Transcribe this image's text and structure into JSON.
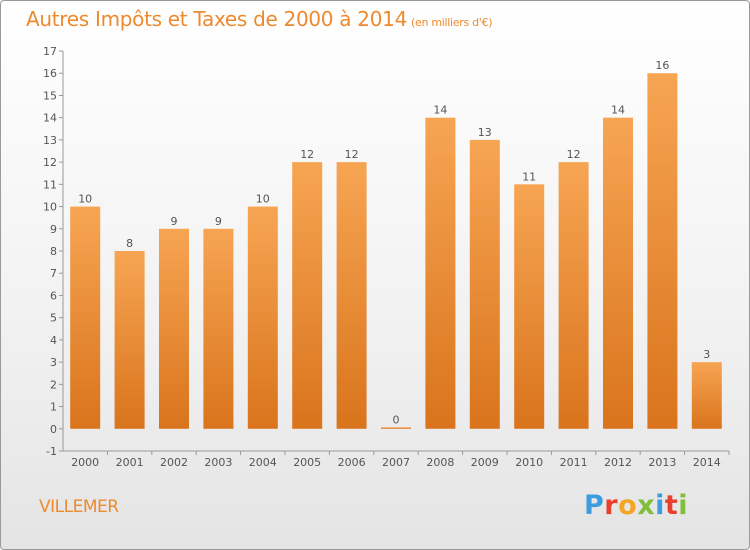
{
  "header": {
    "title": "Autres Impôts et Taxes de 2000 à 2014",
    "unit": "(en milliers d'€)"
  },
  "commune": "VILLEMER",
  "logo": {
    "letters": [
      "P",
      "r",
      "o",
      "x",
      "i",
      "t",
      "i"
    ],
    "colors": [
      "#3b9de0",
      "#e8402c",
      "#f5a623",
      "#7fbf3a",
      "#3b9de0",
      "#e8402c",
      "#7fbf3a"
    ]
  },
  "colors": {
    "bar_light": "#f7a553",
    "bar_dark": "#d9741c",
    "text": "#555555",
    "accent": "#ee8a2e"
  },
  "chart_data": {
    "type": "bar",
    "categories": [
      "2000",
      "2001",
      "2002",
      "2003",
      "2004",
      "2005",
      "2006",
      "2007",
      "2008",
      "2009",
      "2010",
      "2011",
      "2012",
      "2013",
      "2014"
    ],
    "values": [
      10,
      8,
      9,
      9,
      10,
      12,
      12,
      0,
      14,
      13,
      11,
      12,
      14,
      16,
      3
    ],
    "ylim": [
      -1,
      17
    ],
    "yticks": [
      -1,
      0,
      1,
      2,
      3,
      4,
      5,
      6,
      7,
      8,
      9,
      10,
      11,
      12,
      13,
      14,
      15,
      16,
      17
    ],
    "title": "Autres Impôts et Taxes de 2000 à 2014",
    "xlabel": "",
    "ylabel": "",
    "grid": false,
    "data_labels": true
  }
}
